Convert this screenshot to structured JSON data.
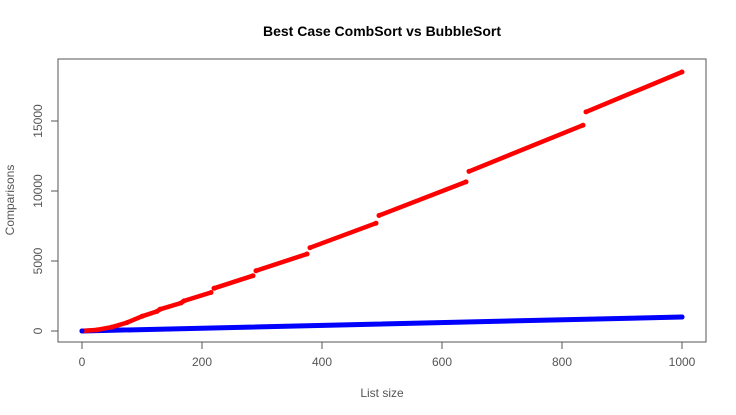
{
  "chart_data": {
    "type": "scatter",
    "title": "Best Case CombSort vs BubbleSort",
    "xlabel": "List size",
    "ylabel": "Comparisons",
    "xlim": [
      0,
      1000
    ],
    "ylim": [
      0,
      18500
    ],
    "x_ticks": [
      0,
      200,
      400,
      600,
      800,
      1000
    ],
    "y_ticks": [
      0,
      5000,
      10000,
      15000
    ],
    "x_tick_labels": [
      "0",
      "200",
      "400",
      "600",
      "800",
      "1000"
    ],
    "y_tick_labels": [
      "0",
      "5000",
      "10000",
      "15000"
    ],
    "grid": false,
    "legend": "none",
    "series": [
      {
        "color": "#ff0000",
        "points": [
          [
            0,
            0
          ],
          [
            25,
            80
          ],
          [
            50,
            280
          ],
          [
            75,
            600
          ],
          [
            100,
            1050
          ],
          [
            125,
            1400
          ],
          [
            130,
            1550
          ],
          [
            165,
            2000
          ],
          [
            170,
            2150
          ],
          [
            215,
            2750
          ],
          [
            220,
            3050
          ],
          [
            285,
            3950
          ],
          [
            290,
            4300
          ],
          [
            375,
            5500
          ],
          [
            380,
            5950
          ],
          [
            490,
            7700
          ],
          [
            495,
            8250
          ],
          [
            640,
            10650
          ],
          [
            645,
            11400
          ],
          [
            835,
            14700
          ],
          [
            840,
            15650
          ],
          [
            1000,
            18500
          ]
        ]
      },
      {
        "color": "#0000ff",
        "points": [
          [
            0,
            0
          ],
          [
            1000,
            1000
          ]
        ]
      }
    ]
  }
}
